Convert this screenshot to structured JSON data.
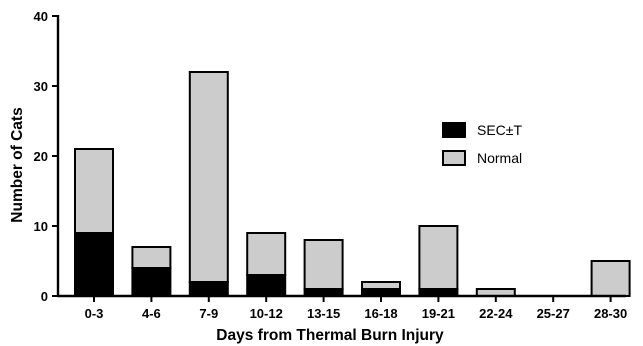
{
  "chart_data": {
    "type": "bar",
    "stacked": true,
    "xlabel": "Days from Thermal Burn Injury",
    "ylabel": "Number of Cats",
    "ylim": [
      0,
      40
    ],
    "yticks": [
      0,
      10,
      20,
      30,
      40
    ],
    "categories": [
      "0-3",
      "4-6",
      "7-9",
      "10-12",
      "13-15",
      "16-18",
      "19-21",
      "22-24",
      "25-27",
      "28-30"
    ],
    "series": [
      {
        "name": "SEC±T",
        "color": "#000000",
        "values": [
          9,
          4,
          2,
          3,
          1,
          1,
          1,
          0,
          0,
          0
        ]
      },
      {
        "name": "Normal",
        "color": "#cccccc",
        "values": [
          12,
          3,
          30,
          6,
          7,
          1,
          9,
          1,
          0,
          5
        ]
      }
    ],
    "legend": {
      "position": "right"
    },
    "grid": false
  }
}
